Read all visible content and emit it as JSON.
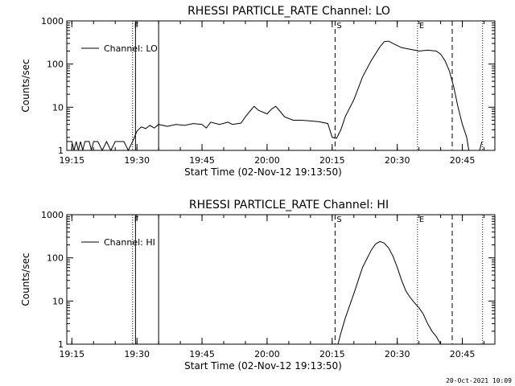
{
  "timestamp": "20-Oct-2021 10:09",
  "chart_data": [
    {
      "type": "line",
      "title": "RHESSI PARTICLE_RATE Channel: LO",
      "xlabel": "Start Time (02-Nov-12 19:13:50)",
      "ylabel": "Counts/sec",
      "legend": "Channel: LO",
      "legend_position": "top-left",
      "y_scale": "log",
      "ylim": [
        1,
        1000
      ],
      "xlim": [
        "19:13:50",
        "20:52:30"
      ],
      "x_tick_labels": [
        "19:15",
        "19:30",
        "19:45",
        "20:00",
        "20:15",
        "20:30",
        "20:45"
      ],
      "y_tick_labels": [
        "1",
        "10",
        "100",
        "1000"
      ],
      "markers": [
        {
          "time": "19:29:00",
          "style": "dotted",
          "label": "F"
        },
        {
          "time": "19:29:40",
          "style": "solid",
          "label": ""
        },
        {
          "time": "19:35:00",
          "style": "solid",
          "label": ""
        },
        {
          "time": "20:15:40",
          "style": "dashed",
          "label": "S"
        },
        {
          "time": "20:34:40",
          "style": "dotted",
          "label": "E"
        },
        {
          "time": "20:42:40",
          "style": "dashed",
          "label": ""
        },
        {
          "time": "20:49:40",
          "style": "dotted",
          "label": ""
        }
      ],
      "series": [
        {
          "name": "Channel: LO",
          "points": [
            [
              "19:13:50",
              1.6
            ],
            [
              "19:15:00",
              1.6
            ],
            [
              "19:15:30",
              1
            ],
            [
              "19:16:00",
              1.6
            ],
            [
              "19:16:30",
              1
            ],
            [
              "19:17:00",
              1.6
            ],
            [
              "19:17:30",
              1
            ],
            [
              "19:18:00",
              1.6
            ],
            [
              "19:19:00",
              1.6
            ],
            [
              "19:19:30",
              1
            ],
            [
              "19:20:00",
              1.6
            ],
            [
              "19:21:00",
              1.6
            ],
            [
              "19:22:00",
              1
            ],
            [
              "19:23:00",
              1.6
            ],
            [
              "19:24:00",
              1
            ],
            [
              "19:25:00",
              1.6
            ],
            [
              "19:27:00",
              1.6
            ],
            [
              "19:28:00",
              1
            ],
            [
              "19:29:00",
              1.6
            ],
            [
              "19:30:00",
              2.8
            ],
            [
              "19:31:00",
              3.5
            ],
            [
              "19:32:00",
              3.2
            ],
            [
              "19:33:00",
              3.8
            ],
            [
              "19:34:00",
              3.3
            ],
            [
              "19:35:00",
              4
            ],
            [
              "19:37:00",
              3.6
            ],
            [
              "19:39:00",
              4
            ],
            [
              "19:41:00",
              3.8
            ],
            [
              "19:43:00",
              4.2
            ],
            [
              "19:45:00",
              4
            ],
            [
              "19:46:00",
              3.3
            ],
            [
              "19:47:00",
              4.5
            ],
            [
              "19:49:00",
              4
            ],
            [
              "19:51:00",
              4.5
            ],
            [
              "19:52:00",
              4
            ],
            [
              "19:54:00",
              4.3
            ],
            [
              "19:55:00",
              6
            ],
            [
              "19:56:00",
              8
            ],
            [
              "19:57:00",
              10.5
            ],
            [
              "19:58:00",
              8.5
            ],
            [
              "20:00:00",
              7
            ],
            [
              "20:01:00",
              9
            ],
            [
              "20:02:00",
              10.5
            ],
            [
              "20:03:00",
              8
            ],
            [
              "20:04:00",
              6
            ],
            [
              "20:06:00",
              5
            ],
            [
              "20:08:00",
              5
            ],
            [
              "20:10:00",
              4.8
            ],
            [
              "20:12:00",
              4.6
            ],
            [
              "20:14:00",
              4.2
            ],
            [
              "20:15:00",
              2
            ],
            [
              "20:16:00",
              1.9
            ],
            [
              "20:17:00",
              3
            ],
            [
              "20:18:00",
              6
            ],
            [
              "20:20:00",
              15
            ],
            [
              "20:22:00",
              50
            ],
            [
              "20:24:00",
              120
            ],
            [
              "20:26:00",
              250
            ],
            [
              "20:27:00",
              330
            ],
            [
              "20:28:00",
              340
            ],
            [
              "20:29:00",
              300
            ],
            [
              "20:31:00",
              240
            ],
            [
              "20:33:00",
              220
            ],
            [
              "20:35:00",
              200
            ],
            [
              "20:37:00",
              210
            ],
            [
              "20:39:00",
              200
            ],
            [
              "20:40:00",
              170
            ],
            [
              "20:41:00",
              120
            ],
            [
              "20:42:00",
              70
            ],
            [
              "20:43:00",
              30
            ],
            [
              "20:44:00",
              10
            ],
            [
              "20:45:00",
              4
            ],
            [
              "20:46:00",
              2
            ],
            [
              "20:46:30",
              1
            ],
            [
              "20:49:00",
              1
            ],
            [
              "20:49:30",
              1.6
            ]
          ]
        }
      ]
    },
    {
      "type": "line",
      "title": "RHESSI PARTICLE_RATE Channel: HI",
      "xlabel": "Start Time (02-Nov-12 19:13:50)",
      "ylabel": "Counts/sec",
      "legend": "Channel: HI",
      "legend_position": "top-left",
      "y_scale": "log",
      "ylim": [
        1,
        1000
      ],
      "xlim": [
        "19:13:50",
        "20:52:30"
      ],
      "x_tick_labels": [
        "19:15",
        "19:30",
        "19:45",
        "20:00",
        "20:15",
        "20:30",
        "20:45"
      ],
      "y_tick_labels": [
        "1",
        "10",
        "100",
        "1000"
      ],
      "markers": [
        {
          "time": "19:29:00",
          "style": "dotted",
          "label": "F"
        },
        {
          "time": "19:29:40",
          "style": "solid",
          "label": ""
        },
        {
          "time": "19:35:00",
          "style": "solid",
          "label": ""
        },
        {
          "time": "20:15:40",
          "style": "dashed",
          "label": "S"
        },
        {
          "time": "20:34:40",
          "style": "dotted",
          "label": "E"
        },
        {
          "time": "20:42:40",
          "style": "dashed",
          "label": ""
        },
        {
          "time": "20:49:40",
          "style": "dotted",
          "label": ""
        }
      ],
      "series": [
        {
          "name": "Channel: HI",
          "points": [
            [
              "20:16:20",
              1
            ],
            [
              "20:17:00",
              1.8
            ],
            [
              "20:18:00",
              4
            ],
            [
              "20:20:00",
              15
            ],
            [
              "20:22:00",
              60
            ],
            [
              "20:24:00",
              150
            ],
            [
              "20:25:00",
              210
            ],
            [
              "20:26:00",
              240
            ],
            [
              "20:27:00",
              220
            ],
            [
              "20:28:00",
              170
            ],
            [
              "20:29:00",
              110
            ],
            [
              "20:30:00",
              60
            ],
            [
              "20:31:00",
              30
            ],
            [
              "20:32:00",
              17
            ],
            [
              "20:33:00",
              12
            ],
            [
              "20:34:00",
              9
            ],
            [
              "20:35:00",
              7
            ],
            [
              "20:36:00",
              5
            ],
            [
              "20:37:00",
              3
            ],
            [
              "20:38:00",
              2
            ],
            [
              "20:39:00",
              1.5
            ],
            [
              "20:40:00",
              1
            ]
          ]
        }
      ]
    }
  ]
}
